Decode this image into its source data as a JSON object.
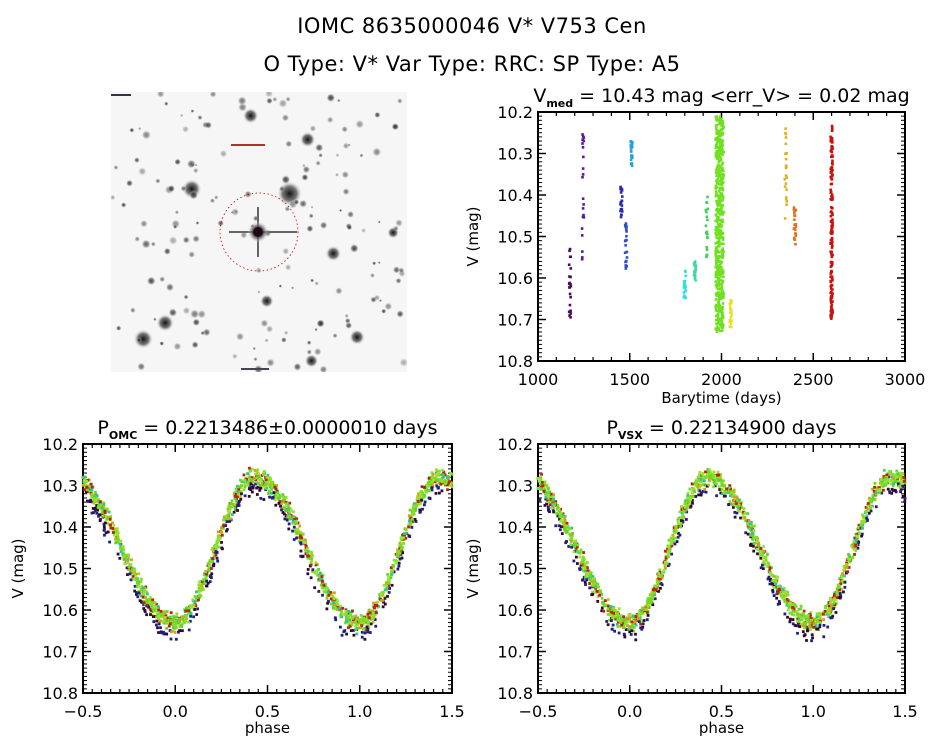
{
  "header": {
    "title_line1": "IOMC 8635000046    V* V753 Cen",
    "title_line2": "O Type: V*  Var Type: RRC:  SP Type: A5"
  },
  "thumbnail": {
    "description": "finder chart (inverted grayscale star field)",
    "target_marker": "red dashed circle",
    "colors": {
      "marker": "#cc0000",
      "stars": "#1a1a1a"
    }
  },
  "chart_data": [
    {
      "id": "lightcurve",
      "type": "scatter",
      "title_main": "V",
      "title_sub": "med",
      "title_rest": " = 10.43 mag <err_V> = 0.02 mag",
      "xlabel": "Barytime (days)",
      "ylabel": "V (mag)",
      "xlim": [
        1000,
        3000
      ],
      "ylim": [
        10.8,
        10.2
      ],
      "y_inverted": true,
      "xticks": [
        "1000",
        "1500",
        "2000",
        "2500",
        "3000"
      ],
      "yticks": [
        "10.2",
        "10.3",
        "10.4",
        "10.5",
        "10.6",
        "10.7",
        "10.8"
      ],
      "series": [
        {
          "name": "epoch-1",
          "color": "#4b0a5a",
          "x": 1175,
          "v_range": [
            10.53,
            10.7
          ]
        },
        {
          "name": "epoch-2",
          "color": "#5a189a",
          "x": 1245,
          "v_range": [
            10.25,
            10.59
          ]
        },
        {
          "name": "epoch-3",
          "color": "#2a2ab0",
          "x": 1455,
          "v_range": [
            10.38,
            10.46
          ]
        },
        {
          "name": "epoch-4",
          "color": "#3050c0",
          "x": 1480,
          "v_range": [
            10.45,
            10.58
          ]
        },
        {
          "name": "epoch-5",
          "color": "#2aa0d8",
          "x": 1510,
          "v_range": [
            10.27,
            10.33
          ]
        },
        {
          "name": "epoch-6",
          "color": "#30e0e0",
          "x": 1800,
          "v_range": [
            10.58,
            10.65
          ]
        },
        {
          "name": "epoch-7",
          "color": "#40d8a0",
          "x": 1855,
          "v_range": [
            10.56,
            10.61
          ]
        },
        {
          "name": "epoch-8",
          "color": "#40d060",
          "x": 1920,
          "v_range": [
            10.4,
            10.56
          ]
        },
        {
          "name": "epoch-9",
          "color": "#70e020",
          "x": 1990,
          "v_range": [
            10.21,
            10.73
          ]
        },
        {
          "name": "epoch-10",
          "color": "#e8e020",
          "x": 2050,
          "v_range": [
            10.65,
            10.72
          ]
        },
        {
          "name": "epoch-11",
          "color": "#e0b020",
          "x": 2350,
          "v_range": [
            10.24,
            10.47
          ]
        },
        {
          "name": "epoch-12",
          "color": "#e07020",
          "x": 2400,
          "v_range": [
            10.43,
            10.52
          ]
        },
        {
          "name": "epoch-13",
          "color": "#cc1010",
          "x": 2600,
          "v_range": [
            10.23,
            10.7
          ]
        }
      ]
    },
    {
      "id": "phase-omc",
      "type": "scatter",
      "title_main": "P",
      "title_sub": "OMC",
      "title_rest": " = 0.2213486±0.0000010 days",
      "period_days": 0.2213486,
      "period_err_days": 1e-06,
      "xlabel": "phase",
      "ylabel": "V (mag)",
      "xlim": [
        -0.5,
        1.5
      ],
      "ylim": [
        10.8,
        10.2
      ],
      "y_inverted": true,
      "xticks": [
        "−0.5",
        "0.0",
        "0.5",
        "1.0",
        "1.5"
      ],
      "yticks": [
        "10.2",
        "10.3",
        "10.4",
        "10.5",
        "10.6",
        "10.7",
        "10.8"
      ],
      "curve": {
        "max_mag": 10.28,
        "max_phase": 0.43,
        "min_mag": 10.63,
        "min_phase": 0.0,
        "scatter": 0.03
      }
    },
    {
      "id": "phase-vsx",
      "type": "scatter",
      "title_main": "P",
      "title_sub": "VSX",
      "title_rest": " = 0.22134900 days",
      "period_days": 0.221349,
      "xlabel": "phase",
      "ylabel": "V (mag)",
      "xlim": [
        -0.5,
        1.5
      ],
      "ylim": [
        10.8,
        10.2
      ],
      "y_inverted": true,
      "xticks": [
        "−0.5",
        "0.0",
        "0.5",
        "1.0",
        "1.5"
      ],
      "yticks": [
        "10.2",
        "10.3",
        "10.4",
        "10.5",
        "10.6",
        "10.7",
        "10.8"
      ],
      "curve": {
        "max_mag": 10.28,
        "max_phase": 0.43,
        "min_mag": 10.63,
        "min_phase": 0.0,
        "scatter": 0.03
      }
    }
  ]
}
